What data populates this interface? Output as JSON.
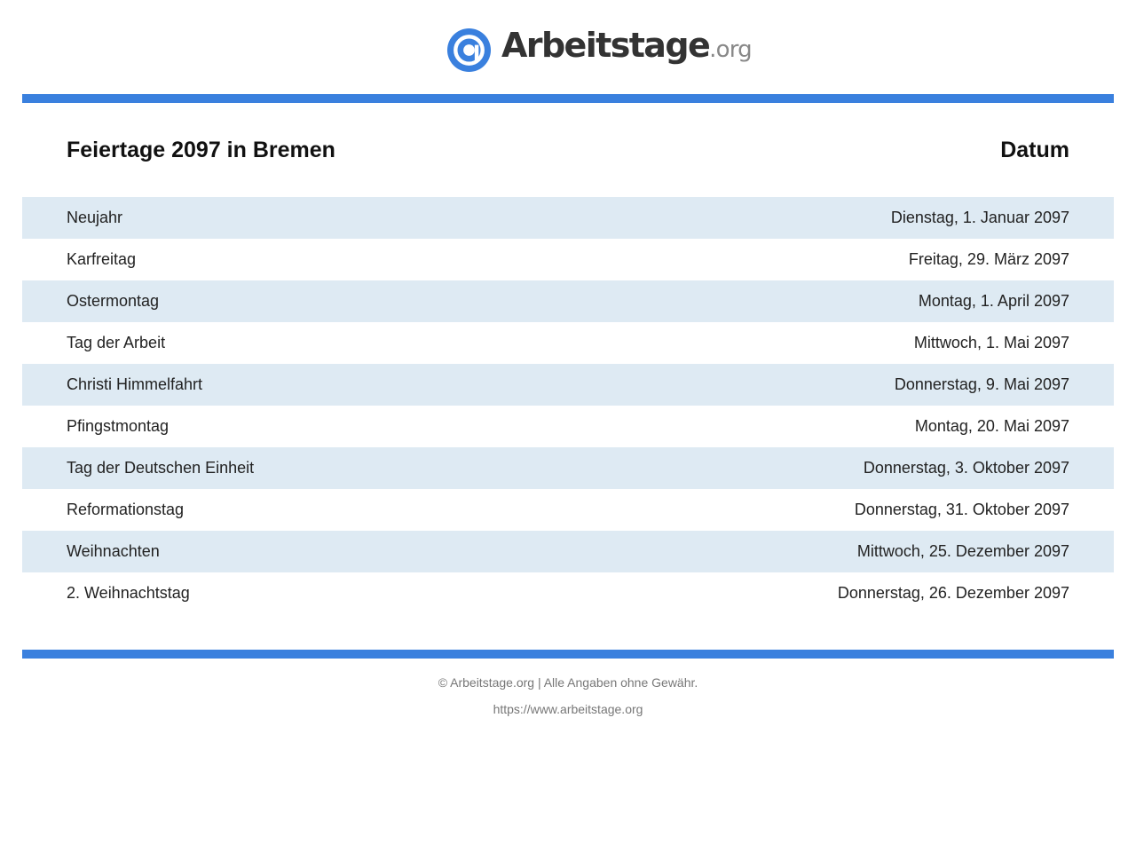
{
  "brand": {
    "name": "Arbeitstage",
    "tld": ".org",
    "icon": "at-sign-icon",
    "accent_color": "#3a80de"
  },
  "table": {
    "header": {
      "name": "Feiertage 2097 in Bremen",
      "date": "Datum"
    },
    "rows": [
      {
        "name": "Neujahr",
        "date": "Dienstag, 1. Januar 2097"
      },
      {
        "name": "Karfreitag",
        "date": "Freitag, 29. März 2097"
      },
      {
        "name": "Ostermontag",
        "date": "Montag, 1. April 2097"
      },
      {
        "name": "Tag der Arbeit",
        "date": "Mittwoch, 1. Mai 2097"
      },
      {
        "name": "Christi Himmelfahrt",
        "date": "Donnerstag, 9. Mai 2097"
      },
      {
        "name": "Pfingstmontag",
        "date": "Montag, 20. Mai 2097"
      },
      {
        "name": "Tag der Deutschen Einheit",
        "date": "Donnerstag, 3. Oktober 2097"
      },
      {
        "name": "Reformationstag",
        "date": "Donnerstag, 31. Oktober 2097"
      },
      {
        "name": "Weihnachten",
        "date": "Mittwoch, 25. Dezember 2097"
      },
      {
        "name": "2. Weihnachtstag",
        "date": "Donnerstag, 26. Dezember 2097"
      }
    ],
    "row_stripe_color": "#deeaf3"
  },
  "footer": {
    "copyright": "© Arbeitstage.org | Alle Angaben ohne Gewähr.",
    "url": "https://www.arbeitstage.org"
  }
}
